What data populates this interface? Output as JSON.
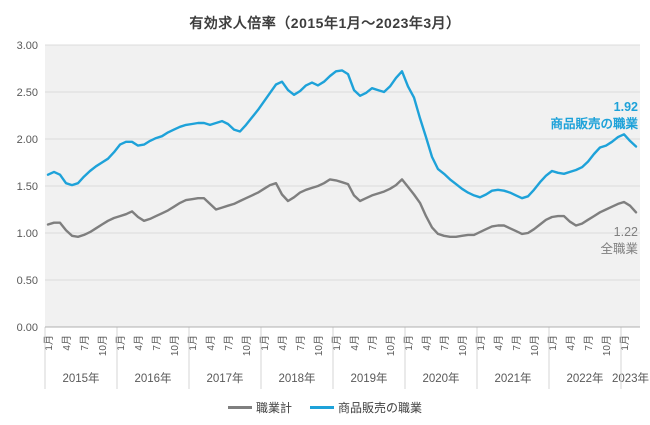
{
  "chart_data": {
    "type": "line",
    "title": "有効求人倍率（2015年1月～2023年3月）",
    "xlabel": "",
    "ylabel": "",
    "ylim": [
      0,
      3
    ],
    "grid": true,
    "legend_position": "bottom",
    "yticks": [
      "0.00",
      "0.50",
      "1.00",
      "1.50",
      "2.00",
      "2.50",
      "3.00"
    ],
    "month_tick_labels": [
      "1月",
      "4月",
      "7月",
      "10月"
    ],
    "years": [
      {
        "label": "2015年",
        "months": 12
      },
      {
        "label": "2016年",
        "months": 12
      },
      {
        "label": "2017年",
        "months": 12
      },
      {
        "label": "2018年",
        "months": 12
      },
      {
        "label": "2019年",
        "months": 12
      },
      {
        "label": "2020年",
        "months": 12
      },
      {
        "label": "2021年",
        "months": 12
      },
      {
        "label": "2022年",
        "months": 12
      },
      {
        "label": "2023年",
        "months": 3
      }
    ],
    "series": [
      {
        "name": "職業計",
        "color": "#7f7f7f",
        "values": [
          1.09,
          1.11,
          1.11,
          1.03,
          0.97,
          0.96,
          0.98,
          1.01,
          1.05,
          1.09,
          1.13,
          1.16,
          1.18,
          1.2,
          1.23,
          1.17,
          1.13,
          1.15,
          1.18,
          1.21,
          1.24,
          1.28,
          1.32,
          1.35,
          1.36,
          1.37,
          1.37,
          1.31,
          1.25,
          1.27,
          1.29,
          1.31,
          1.34,
          1.37,
          1.4,
          1.43,
          1.47,
          1.51,
          1.53,
          1.41,
          1.34,
          1.38,
          1.43,
          1.46,
          1.48,
          1.5,
          1.53,
          1.57,
          1.56,
          1.54,
          1.52,
          1.4,
          1.34,
          1.37,
          1.4,
          1.42,
          1.44,
          1.47,
          1.51,
          1.57,
          1.49,
          1.41,
          1.32,
          1.18,
          1.06,
          0.99,
          0.97,
          0.96,
          0.96,
          0.97,
          0.98,
          0.98,
          1.01,
          1.04,
          1.07,
          1.08,
          1.08,
          1.05,
          1.02,
          0.99,
          1.0,
          1.04,
          1.09,
          1.14,
          1.17,
          1.18,
          1.18,
          1.12,
          1.08,
          1.1,
          1.14,
          1.18,
          1.22,
          1.25,
          1.28,
          1.31,
          1.33,
          1.29,
          1.22
        ]
      },
      {
        "name": "商品販売の職業",
        "color": "#1ea2d9",
        "values": [
          1.62,
          1.65,
          1.62,
          1.53,
          1.51,
          1.53,
          1.6,
          1.66,
          1.71,
          1.75,
          1.79,
          1.86,
          1.94,
          1.97,
          1.97,
          1.93,
          1.94,
          1.98,
          2.01,
          2.03,
          2.07,
          2.1,
          2.13,
          2.15,
          2.16,
          2.17,
          2.17,
          2.15,
          2.17,
          2.19,
          2.16,
          2.1,
          2.08,
          2.15,
          2.23,
          2.31,
          2.4,
          2.49,
          2.58,
          2.61,
          2.52,
          2.47,
          2.51,
          2.57,
          2.6,
          2.57,
          2.61,
          2.67,
          2.72,
          2.73,
          2.69,
          2.52,
          2.46,
          2.49,
          2.54,
          2.52,
          2.5,
          2.56,
          2.65,
          2.72,
          2.56,
          2.44,
          2.22,
          2.02,
          1.81,
          1.68,
          1.63,
          1.57,
          1.52,
          1.47,
          1.43,
          1.4,
          1.38,
          1.41,
          1.45,
          1.46,
          1.45,
          1.43,
          1.4,
          1.37,
          1.39,
          1.46,
          1.54,
          1.61,
          1.66,
          1.64,
          1.63,
          1.65,
          1.67,
          1.7,
          1.76,
          1.84,
          1.91,
          1.93,
          1.97,
          2.02,
          2.05,
          1.98,
          1.92
        ]
      }
    ]
  },
  "annotations": {
    "sales": {
      "value": "1.92",
      "label": "商品販売の職業"
    },
    "total": {
      "value": "1.22",
      "label": "全職業"
    }
  },
  "legend": {
    "items": [
      {
        "label": "職業計"
      },
      {
        "label": "商品販売の職業"
      }
    ]
  },
  "colors": {
    "plot_background": "#f1f1f1",
    "gridline": "#dcdcdc",
    "axis_line": "#b0b0b0",
    "separator": "#d4d4d4",
    "tick_text": "#595959",
    "title_text": "#3d3d3d"
  }
}
